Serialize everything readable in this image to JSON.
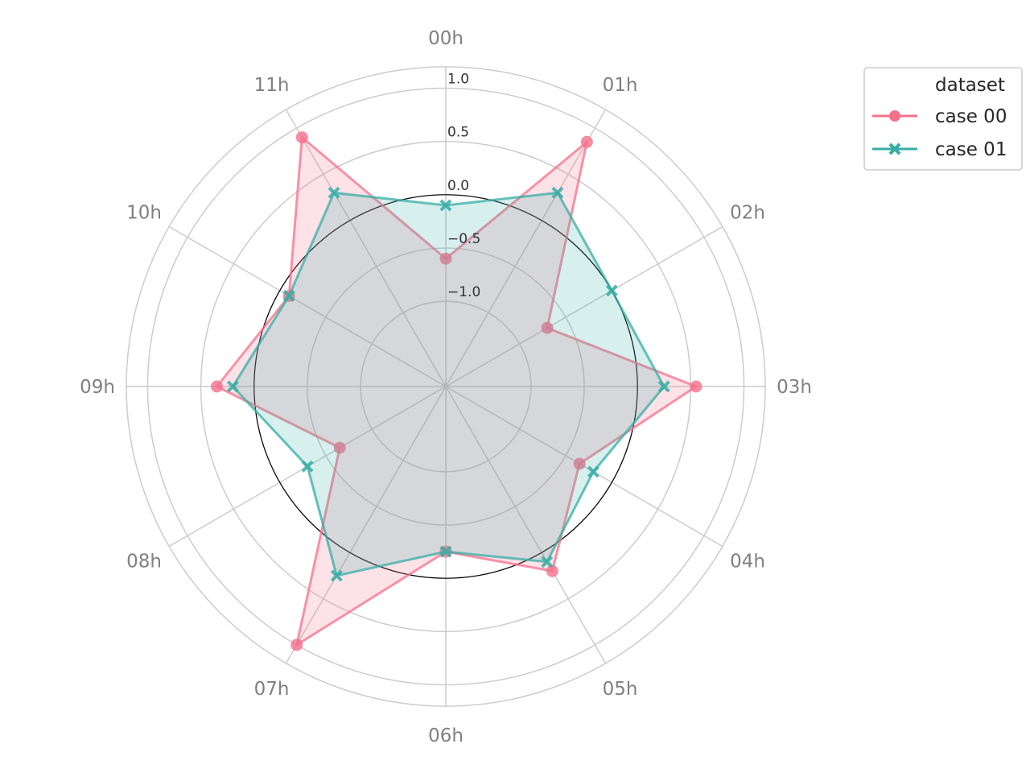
{
  "chart_data": {
    "type": "radar",
    "categories": [
      "00h",
      "01h",
      "02h",
      "03h",
      "04h",
      "05h",
      "06h",
      "07h",
      "08h",
      "09h",
      "10h",
      "11h"
    ],
    "rlim": [
      -1.8,
      1.2
    ],
    "rticks": [
      -1.0,
      -0.5,
      0.0,
      0.5,
      1.0
    ],
    "rtick_labels": [
      "−1.0",
      "−0.5",
      "0.0",
      "0.5",
      "1.0"
    ],
    "reference_circle": 0.0,
    "legend": {
      "title": "dataset",
      "placement": "upper-right-outside"
    },
    "series": [
      {
        "name": "case 00",
        "color": "#f5708b",
        "marker": "circle",
        "values": [
          -0.6,
          0.85,
          -0.7,
          0.55,
          -0.35,
          0.2,
          -0.25,
          1.0,
          -0.65,
          0.35,
          -0.1,
          0.9
        ]
      },
      {
        "name": "case 01",
        "color": "#36ada4",
        "marker": "x",
        "values": [
          -0.1,
          0.3,
          -0.0,
          0.25,
          -0.2,
          0.1,
          -0.25,
          0.25,
          -0.3,
          0.2,
          -0.1,
          0.3
        ]
      }
    ],
    "grid": true
  }
}
